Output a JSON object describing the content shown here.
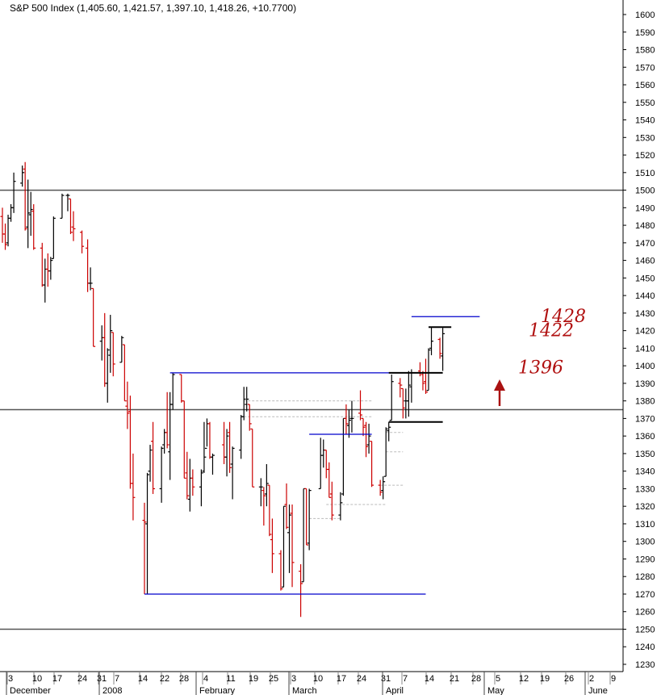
{
  "chart_data": {
    "type": "ohlc",
    "title": "S&P 500 Index (1,405.60, 1,421.57, 1,397.10, 1,418.26, +10.7700)",
    "ylim": [
      1225,
      1610
    ],
    "y_ticks": [
      1230,
      1240,
      1250,
      1260,
      1270,
      1280,
      1290,
      1300,
      1310,
      1320,
      1330,
      1340,
      1350,
      1360,
      1370,
      1380,
      1390,
      1400,
      1410,
      1420,
      1430,
      1440,
      1450,
      1460,
      1470,
      1480,
      1490,
      1500,
      1510,
      1520,
      1530,
      1540,
      1550,
      1560,
      1570,
      1580,
      1590,
      1600
    ],
    "x_ticks": [
      "3",
      "10",
      "17",
      "24",
      "31",
      "7",
      "14",
      "22",
      "28",
      "4",
      "11",
      "19",
      "25",
      "3",
      "10",
      "17",
      "24",
      "31",
      "7",
      "14",
      "21",
      "28",
      "5",
      "12",
      "19",
      "26",
      "2",
      "9"
    ],
    "month_labels": [
      "December",
      "2008",
      "February",
      "March",
      "April",
      "May",
      "June"
    ],
    "colors": {
      "up": "#000000",
      "down": "#cc0000",
      "support": "#0000cc",
      "hline": "#555555",
      "annotation": "#aa1111"
    },
    "bars": [
      {
        "date": "2007-12-03",
        "open": 1485,
        "high": 1490,
        "low": 1470,
        "close": 1475
      },
      {
        "date": "2007-12-04",
        "open": 1475,
        "high": 1481,
        "low": 1466,
        "close": 1469
      },
      {
        "date": "2007-12-05",
        "open": 1470,
        "high": 1486,
        "low": 1468,
        "close": 1484
      },
      {
        "date": "2007-12-06",
        "open": 1484,
        "high": 1492,
        "low": 1482,
        "close": 1490
      },
      {
        "date": "2007-12-07",
        "open": 1490,
        "high": 1510,
        "low": 1487,
        "close": 1505
      },
      {
        "date": "2007-12-10",
        "open": 1504,
        "high": 1514,
        "low": 1502,
        "close": 1510
      },
      {
        "date": "2007-12-11",
        "open": 1512,
        "high": 1516,
        "low": 1477,
        "close": 1478
      },
      {
        "date": "2007-12-12",
        "open": 1479,
        "high": 1506,
        "low": 1467,
        "close": 1487
      },
      {
        "date": "2007-12-13",
        "open": 1486,
        "high": 1499,
        "low": 1474,
        "close": 1489
      },
      {
        "date": "2007-12-14",
        "open": 1488,
        "high": 1492,
        "low": 1466,
        "close": 1467
      },
      {
        "date": "2007-12-17",
        "open": 1467,
        "high": 1470,
        "low": 1445,
        "close": 1446
      },
      {
        "date": "2007-12-18",
        "open": 1446,
        "high": 1461,
        "low": 1436,
        "close": 1455
      },
      {
        "date": "2007-12-19",
        "open": 1455,
        "high": 1464,
        "low": 1445,
        "close": 1454
      },
      {
        "date": "2007-12-20",
        "open": 1454,
        "high": 1462,
        "low": 1449,
        "close": 1460
      },
      {
        "date": "2007-12-21",
        "open": 1461,
        "high": 1485,
        "low": 1461,
        "close": 1484
      },
      {
        "date": "2007-12-24",
        "open": 1484,
        "high": 1498,
        "low": 1484,
        "close": 1497
      },
      {
        "date": "2007-12-26",
        "open": 1497,
        "high": 1498,
        "low": 1488,
        "close": 1497
      },
      {
        "date": "2007-12-27",
        "open": 1495,
        "high": 1495,
        "low": 1475,
        "close": 1476
      },
      {
        "date": "2007-12-28",
        "open": 1479,
        "high": 1488,
        "low": 1471,
        "close": 1478
      },
      {
        "date": "2007-12-31",
        "open": 1476,
        "high": 1477,
        "low": 1464,
        "close": 1468
      },
      {
        "date": "2008-01-02",
        "open": 1467,
        "high": 1472,
        "low": 1442,
        "close": 1447
      },
      {
        "date": "2008-01-03",
        "open": 1447,
        "high": 1456,
        "low": 1443,
        "close": 1447
      },
      {
        "date": "2008-01-04",
        "open": 1444,
        "high": 1444,
        "low": 1411,
        "close": 1411
      },
      {
        "date": "2008-01-07",
        "open": 1414,
        "high": 1423,
        "low": 1403,
        "close": 1416
      },
      {
        "date": "2008-01-08",
        "open": 1416,
        "high": 1430,
        "low": 1388,
        "close": 1390
      },
      {
        "date": "2008-01-09",
        "open": 1390,
        "high": 1410,
        "low": 1379,
        "close": 1409
      },
      {
        "date": "2008-01-10",
        "open": 1406,
        "high": 1429,
        "low": 1396,
        "close": 1420
      },
      {
        "date": "2008-01-11",
        "open": 1419,
        "high": 1419,
        "low": 1394,
        "close": 1401
      },
      {
        "date": "2008-01-14",
        "open": 1402,
        "high": 1417,
        "low": 1402,
        "close": 1416
      },
      {
        "date": "2008-01-15",
        "open": 1412,
        "high": 1412,
        "low": 1380,
        "close": 1380
      },
      {
        "date": "2008-01-16",
        "open": 1377,
        "high": 1391,
        "low": 1364,
        "close": 1373
      },
      {
        "date": "2008-01-17",
        "open": 1374,
        "high": 1383,
        "low": 1330,
        "close": 1333
      },
      {
        "date": "2008-01-18",
        "open": 1333,
        "high": 1350,
        "low": 1312,
        "close": 1325
      },
      {
        "date": "2008-01-22",
        "open": 1312,
        "high": 1322,
        "low": 1270,
        "close": 1311
      },
      {
        "date": "2008-01-23",
        "open": 1310,
        "high": 1339,
        "low": 1270,
        "close": 1338
      },
      {
        "date": "2008-01-24",
        "open": 1340,
        "high": 1355,
        "low": 1334,
        "close": 1352
      },
      {
        "date": "2008-01-25",
        "open": 1357,
        "high": 1368,
        "low": 1327,
        "close": 1330
      },
      {
        "date": "2008-01-28",
        "open": 1330,
        "high": 1354,
        "low": 1322,
        "close": 1353
      },
      {
        "date": "2008-01-29",
        "open": 1355,
        "high": 1364,
        "low": 1350,
        "close": 1362
      },
      {
        "date": "2008-01-30",
        "open": 1362,
        "high": 1385,
        "low": 1353,
        "close": 1355
      },
      {
        "date": "2008-01-31",
        "open": 1351,
        "high": 1385,
        "low": 1335,
        "close": 1378
      },
      {
        "date": "2008-02-01",
        "open": 1378,
        "high": 1396,
        "low": 1375,
        "close": 1395
      },
      {
        "date": "2008-02-04",
        "open": 1395,
        "high": 1395,
        "low": 1379,
        "close": 1380
      },
      {
        "date": "2008-02-05",
        "open": 1380,
        "high": 1380,
        "low": 1336,
        "close": 1336
      },
      {
        "date": "2008-02-06",
        "open": 1339,
        "high": 1351,
        "low": 1324,
        "close": 1326
      },
      {
        "date": "2008-02-07",
        "open": 1324,
        "high": 1347,
        "low": 1317,
        "close": 1336
      },
      {
        "date": "2008-02-08",
        "open": 1336,
        "high": 1341,
        "low": 1326,
        "close": 1331
      },
      {
        "date": "2008-02-11",
        "open": 1331,
        "high": 1341,
        "low": 1320,
        "close": 1339
      },
      {
        "date": "2008-02-12",
        "open": 1340,
        "high": 1368,
        "low": 1339,
        "close": 1348
      },
      {
        "date": "2008-02-13",
        "open": 1353,
        "high": 1370,
        "low": 1354,
        "close": 1367
      },
      {
        "date": "2008-02-14",
        "open": 1367,
        "high": 1368,
        "low": 1347,
        "close": 1348
      },
      {
        "date": "2008-02-15",
        "open": 1348,
        "high": 1350,
        "low": 1338,
        "close": 1349
      },
      {
        "date": "2008-02-19",
        "open": 1355,
        "high": 1368,
        "low": 1344,
        "close": 1348
      },
      {
        "date": "2008-02-20",
        "open": 1348,
        "high": 1364,
        "low": 1337,
        "close": 1360
      },
      {
        "date": "2008-02-21",
        "open": 1362,
        "high": 1368,
        "low": 1339,
        "close": 1342
      },
      {
        "date": "2008-02-22",
        "open": 1344,
        "high": 1354,
        "low": 1324,
        "close": 1353
      },
      {
        "date": "2008-02-25",
        "open": 1352,
        "high": 1372,
        "low": 1347,
        "close": 1371
      },
      {
        "date": "2008-02-26",
        "open": 1371,
        "high": 1388,
        "low": 1369,
        "close": 1381
      },
      {
        "date": "2008-02-27",
        "open": 1378,
        "high": 1388,
        "low": 1374,
        "close": 1381
      },
      {
        "date": "2008-02-28",
        "open": 1378,
        "high": 1378,
        "low": 1363,
        "close": 1367
      },
      {
        "date": "2008-02-29",
        "open": 1364,
        "high": 1364,
        "low": 1331,
        "close": 1331
      },
      {
        "date": "2008-03-03",
        "open": 1331,
        "high": 1336,
        "low": 1320,
        "close": 1331
      },
      {
        "date": "2008-03-04",
        "open": 1329,
        "high": 1331,
        "low": 1309,
        "close": 1326
      },
      {
        "date": "2008-03-05",
        "open": 1327,
        "high": 1344,
        "low": 1320,
        "close": 1333
      },
      {
        "date": "2008-03-06",
        "open": 1332,
        "high": 1332,
        "low": 1303,
        "close": 1304
      },
      {
        "date": "2008-03-07",
        "open": 1301,
        "high": 1313,
        "low": 1282,
        "close": 1293
      },
      {
        "date": "2008-03-10",
        "open": 1293,
        "high": 1295,
        "low": 1272,
        "close": 1273
      },
      {
        "date": "2008-03-11",
        "open": 1274,
        "high": 1320,
        "low": 1274,
        "close": 1320
      },
      {
        "date": "2008-03-12",
        "open": 1321,
        "high": 1333,
        "low": 1307,
        "close": 1308
      },
      {
        "date": "2008-03-13",
        "open": 1305,
        "high": 1321,
        "low": 1282,
        "close": 1315
      },
      {
        "date": "2008-03-14",
        "open": 1316,
        "high": 1321,
        "low": 1274,
        "close": 1288
      },
      {
        "date": "2008-03-17",
        "open": 1283,
        "high": 1287,
        "low": 1257,
        "close": 1276
      },
      {
        "date": "2008-03-18",
        "open": 1277,
        "high": 1330,
        "low": 1277,
        "close": 1330
      },
      {
        "date": "2008-03-19",
        "open": 1330,
        "high": 1330,
        "low": 1298,
        "close": 1298
      },
      {
        "date": "2008-03-20",
        "open": 1299,
        "high": 1330,
        "low": 1295,
        "close": 1329
      },
      {
        "date": "2008-03-24",
        "open": 1330,
        "high": 1359,
        "low": 1330,
        "close": 1349
      },
      {
        "date": "2008-03-25",
        "open": 1349,
        "high": 1358,
        "low": 1342,
        "close": 1352
      },
      {
        "date": "2008-03-26",
        "open": 1352,
        "high": 1352,
        "low": 1336,
        "close": 1341
      },
      {
        "date": "2008-03-27",
        "open": 1341,
        "high": 1345,
        "low": 1325,
        "close": 1325
      },
      {
        "date": "2008-03-28",
        "open": 1327,
        "high": 1334,
        "low": 1312,
        "close": 1315
      },
      {
        "date": "2008-03-31",
        "open": 1315,
        "high": 1328,
        "low": 1312,
        "close": 1322
      },
      {
        "date": "2008-04-01",
        "open": 1327,
        "high": 1370,
        "low": 1326,
        "close": 1370
      },
      {
        "date": "2008-04-02",
        "open": 1370,
        "high": 1378,
        "low": 1361,
        "close": 1367
      },
      {
        "date": "2008-04-03",
        "open": 1366,
        "high": 1375,
        "low": 1359,
        "close": 1369
      },
      {
        "date": "2008-04-04",
        "open": 1370,
        "high": 1380,
        "low": 1362,
        "close": 1370
      },
      {
        "date": "2008-04-07",
        "open": 1373,
        "high": 1386,
        "low": 1369,
        "close": 1372
      },
      {
        "date": "2008-04-08",
        "open": 1370,
        "high": 1370,
        "low": 1360,
        "close": 1365
      },
      {
        "date": "2008-04-09",
        "open": 1366,
        "high": 1368,
        "low": 1348,
        "close": 1354
      },
      {
        "date": "2008-04-10",
        "open": 1355,
        "high": 1367,
        "low": 1350,
        "close": 1360
      },
      {
        "date": "2008-04-11",
        "open": 1357,
        "high": 1357,
        "low": 1331,
        "close": 1332
      },
      {
        "date": "2008-04-14",
        "open": 1332,
        "high": 1335,
        "low": 1326,
        "close": 1328
      },
      {
        "date": "2008-04-15",
        "open": 1329,
        "high": 1337,
        "low": 1324,
        "close": 1334
      },
      {
        "date": "2008-04-16",
        "open": 1337,
        "high": 1365,
        "low": 1337,
        "close": 1364
      },
      {
        "date": "2008-04-17",
        "open": 1363,
        "high": 1368,
        "low": 1357,
        "close": 1365
      },
      {
        "date": "2008-04-18",
        "open": 1369,
        "high": 1395,
        "low": 1369,
        "close": 1391
      },
      {
        "date": "2008-04-21",
        "open": 1390,
        "high": 1393,
        "low": 1382,
        "close": 1389
      },
      {
        "date": "2008-04-22",
        "open": 1387,
        "high": 1387,
        "low": 1370,
        "close": 1376
      },
      {
        "date": "2008-04-23",
        "open": 1380,
        "high": 1387,
        "low": 1370,
        "close": 1380
      },
      {
        "date": "2008-04-24",
        "open": 1380,
        "high": 1397,
        "low": 1371,
        "close": 1389
      },
      {
        "date": "2008-04-25",
        "open": 1388,
        "high": 1398,
        "low": 1379,
        "close": 1396
      },
      {
        "date": "2008-04-28",
        "open": 1397,
        "high": 1402,
        "low": 1394,
        "close": 1396
      },
      {
        "date": "2008-04-29",
        "open": 1395,
        "high": 1397,
        "low": 1386,
        "close": 1390
      },
      {
        "date": "2008-04-30",
        "open": 1391,
        "high": 1404,
        "low": 1384,
        "close": 1385
      },
      {
        "date": "2008-05-01",
        "open": 1386,
        "high": 1410,
        "low": 1386,
        "close": 1409
      },
      {
        "date": "2008-05-02",
        "open": 1410,
        "high": 1422,
        "low": 1406,
        "close": 1414
      },
      {
        "date": "2008-05-05",
        "open": 1415,
        "high": 1416,
        "low": 1404,
        "close": 1407
      },
      {
        "date": "2008-05-06",
        "open": 1405.6,
        "high": 1421.57,
        "low": 1397.1,
        "close": 1418.26
      }
    ],
    "support_lines": [
      {
        "price": 1396,
        "from": "2008-01-31",
        "to": "2008-04-24"
      },
      {
        "price": 1361,
        "from": "2008-03-20",
        "to": "2008-04-11"
      },
      {
        "price": 1270,
        "from": "2008-01-22",
        "to": "2008-04-30"
      },
      {
        "price": 1428,
        "from": "2008-04-25",
        "to": "2008-05-19"
      }
    ],
    "black_lines": [
      {
        "price": 1396,
        "from": "2008-04-17",
        "to": "2008-05-06"
      },
      {
        "price": 1368,
        "from": "2008-04-17",
        "to": "2008-05-06"
      },
      {
        "price": 1422,
        "from": "2008-05-01",
        "to": "2008-05-09"
      }
    ],
    "horizontal_lines": [
      1500,
      1375,
      1250
    ],
    "dashed_levels": [
      {
        "price": 1380,
        "from": "2008-02-26",
        "to": "2008-04-11"
      },
      {
        "price": 1371,
        "from": "2008-02-26",
        "to": "2008-04-11"
      },
      {
        "price": 1362,
        "from": "2008-04-16",
        "to": "2008-04-22"
      },
      {
        "price": 1351,
        "from": "2008-04-16",
        "to": "2008-04-22"
      },
      {
        "price": 1332,
        "from": "2008-04-14",
        "to": "2008-04-22"
      },
      {
        "price": 1321,
        "from": "2008-03-26",
        "to": "2008-04-16"
      },
      {
        "price": 1313,
        "from": "2008-03-20",
        "to": "2008-03-31"
      }
    ],
    "annotations": [
      {
        "text": "1428",
        "price": 1428
      },
      {
        "text": "1422",
        "price": 1420
      },
      {
        "text": "1396",
        "price": 1399
      }
    ]
  }
}
